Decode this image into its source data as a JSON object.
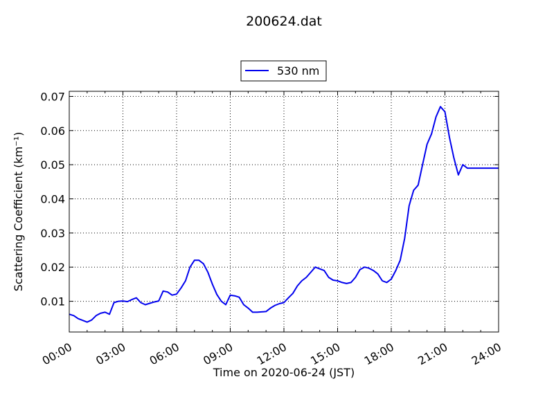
{
  "chart_data": {
    "type": "line",
    "title": "200624.dat",
    "xlabel": "Time on 2020-06-24 (JST)",
    "ylabel": "Scattering Coefficient (km⁻¹)",
    "x_tick_labels": [
      "00:00",
      "03:00",
      "06:00",
      "09:00",
      "12:00",
      "15:00",
      "18:00",
      "21:00",
      "24:00"
    ],
    "y_tick_labels": [
      "0.01",
      "0.02",
      "0.03",
      "0.04",
      "0.05",
      "0.06",
      "0.07"
    ],
    "xlim_hours": [
      0,
      24
    ],
    "ylim": [
      0.001,
      0.0715
    ],
    "grid": true,
    "legend_position": "top-center",
    "series": [
      {
        "name": "530 nm",
        "color": "#0000ee",
        "x_hours": [
          0.0,
          0.25,
          0.5,
          0.75,
          1.0,
          1.25,
          1.5,
          1.75,
          2.0,
          2.25,
          2.5,
          2.75,
          3.0,
          3.25,
          3.5,
          3.75,
          4.0,
          4.25,
          4.5,
          4.75,
          5.0,
          5.25,
          5.5,
          5.75,
          6.0,
          6.25,
          6.5,
          6.75,
          7.0,
          7.25,
          7.5,
          7.75,
          8.0,
          8.25,
          8.5,
          8.75,
          9.0,
          9.25,
          9.5,
          9.75,
          10.0,
          10.25,
          10.5,
          10.75,
          11.0,
          11.25,
          11.5,
          11.75,
          12.0,
          12.25,
          12.5,
          12.75,
          13.0,
          13.25,
          13.5,
          13.75,
          14.0,
          14.25,
          14.5,
          14.75,
          15.0,
          15.25,
          15.5,
          15.75,
          16.0,
          16.25,
          16.5,
          16.75,
          17.0,
          17.25,
          17.5,
          17.75,
          18.0,
          18.25,
          18.5,
          18.75,
          19.0,
          19.25,
          19.5,
          19.75,
          20.0,
          20.25,
          20.5,
          20.75,
          21.0,
          21.25,
          21.5,
          21.75,
          22.0,
          22.25,
          22.5,
          22.75,
          23.0,
          23.25,
          23.5,
          23.75,
          24.0
        ],
        "y": [
          0.0062,
          0.0058,
          0.0049,
          0.0044,
          0.0039,
          0.0045,
          0.0058,
          0.0065,
          0.0068,
          0.0062,
          0.0096,
          0.01,
          0.0101,
          0.0099,
          0.0105,
          0.011,
          0.0096,
          0.009,
          0.0094,
          0.0098,
          0.0101,
          0.013,
          0.0127,
          0.0118,
          0.0121,
          0.0139,
          0.016,
          0.02,
          0.022,
          0.022,
          0.021,
          0.0185,
          0.015,
          0.012,
          0.01,
          0.009,
          0.0118,
          0.0116,
          0.0112,
          0.009,
          0.008,
          0.0068,
          0.0068,
          0.0069,
          0.007,
          0.008,
          0.0088,
          0.0093,
          0.0096,
          0.011,
          0.0123,
          0.0145,
          0.016,
          0.017,
          0.0185,
          0.02,
          0.0195,
          0.019,
          0.017,
          0.0162,
          0.016,
          0.0155,
          0.0152,
          0.0155,
          0.017,
          0.0193,
          0.02,
          0.0197,
          0.019,
          0.018,
          0.016,
          0.0155,
          0.0165,
          0.019,
          0.022,
          0.0285,
          0.038,
          0.0425,
          0.044,
          0.05,
          0.056,
          0.059,
          0.064,
          0.067,
          0.0655,
          0.058,
          0.052,
          0.047,
          0.05,
          0.049,
          0.049,
          0.049,
          0.049,
          0.049,
          0.049,
          0.049,
          0.049
        ]
      }
    ]
  }
}
